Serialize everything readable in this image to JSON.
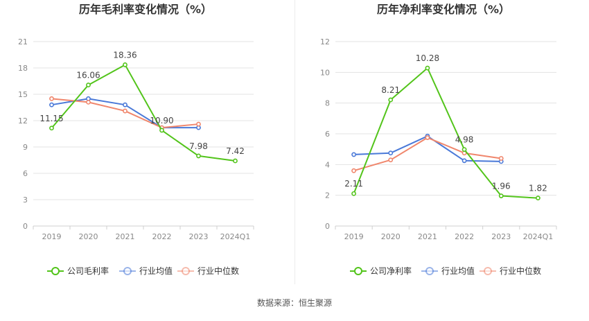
{
  "source_note": "数据来源：恒生聚源",
  "colors": {
    "company": "#52c41a",
    "avg": "#4a79d8",
    "median": "#f0866c",
    "grid": "#e3e3e3",
    "axis_text": "#888888",
    "title": "#333333"
  },
  "chart_data": [
    {
      "type": "line",
      "title": "历年毛利率变化情况（%）",
      "categories": [
        "2019",
        "2020",
        "2021",
        "2022",
        "2023",
        "2024Q1"
      ],
      "ylim": [
        0,
        21
      ],
      "yticks": [
        0,
        3,
        6,
        9,
        12,
        15,
        18,
        21
      ],
      "legend_position": "bottom",
      "grid": true,
      "series": [
        {
          "name": "公司毛利率",
          "key": "company",
          "values": [
            11.15,
            16.06,
            18.36,
            10.9,
            7.98,
            7.42
          ],
          "labels": [
            "11.15",
            "16.06",
            "18.36",
            "10.90",
            "7.98",
            "7.42"
          ]
        },
        {
          "name": "行业均值",
          "key": "avg",
          "values": [
            13.8,
            14.5,
            13.8,
            11.2,
            11.2,
            null
          ]
        },
        {
          "name": "行业中位数",
          "key": "median",
          "values": [
            14.5,
            14.1,
            13.1,
            11.2,
            11.6,
            null
          ]
        }
      ]
    },
    {
      "type": "line",
      "title": "历年净利率变化情况（%）",
      "categories": [
        "2019",
        "2020",
        "2021",
        "2022",
        "2023",
        "2024Q1"
      ],
      "ylim": [
        0,
        12
      ],
      "yticks": [
        0,
        2,
        4,
        6,
        8,
        10,
        12
      ],
      "legend_position": "bottom",
      "grid": true,
      "series": [
        {
          "name": "公司净利率",
          "key": "company",
          "values": [
            2.11,
            8.21,
            10.28,
            4.98,
            1.96,
            1.82
          ],
          "labels": [
            "2.11",
            "8.21",
            "10.28",
            "4.98",
            "1.96",
            "1.82"
          ]
        },
        {
          "name": "行业均值",
          "key": "avg",
          "values": [
            4.65,
            4.75,
            5.85,
            4.25,
            4.2,
            null
          ]
        },
        {
          "name": "行业中位数",
          "key": "median",
          "values": [
            3.6,
            4.3,
            5.75,
            4.75,
            4.4,
            null
          ]
        }
      ]
    }
  ]
}
